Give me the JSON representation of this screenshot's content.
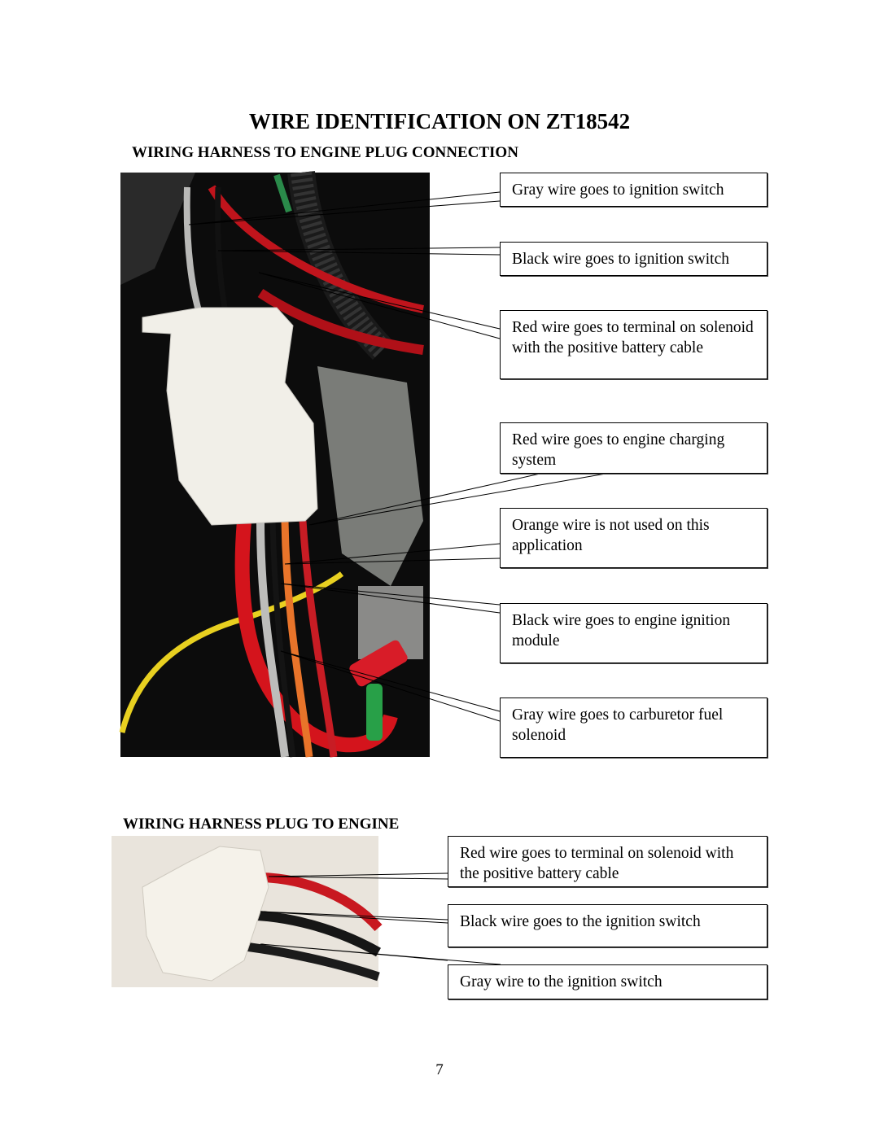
{
  "title": "WIRE IDENTIFICATION ON ZT18542",
  "sections": [
    {
      "heading": "WIRING HARNESS TO ENGINE PLUG CONNECTION",
      "callouts": [
        "Gray wire goes to ignition switch",
        "Black wire goes to ignition switch",
        "Red wire goes to terminal on solenoid with the positive battery cable",
        "Red wire goes to engine charging system",
        "Orange wire is not used on this application",
        "Black wire goes to engine ignition module",
        "Gray wire goes to carburetor fuel solenoid"
      ]
    },
    {
      "heading": "WIRING HARNESS PLUG TO ENGINE",
      "callouts": [
        "Red wire goes to terminal on solenoid with the positive battery cable",
        "Black wire goes to the ignition switch",
        "Gray wire to the ignition switch"
      ]
    }
  ],
  "page_number": "7"
}
